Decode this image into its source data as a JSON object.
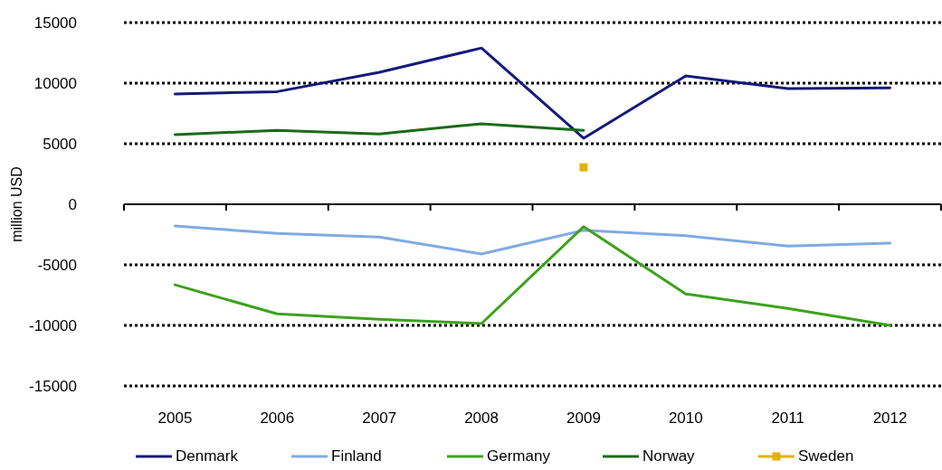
{
  "chart_data": {
    "type": "line",
    "ylabel": "million  USD",
    "categories": [
      "2005",
      "2006",
      "2007",
      "2008",
      "2009",
      "2010",
      "2011",
      "2012"
    ],
    "ylim": [
      -15000,
      15000
    ],
    "yticks": [
      -15000,
      -10000,
      -5000,
      0,
      5000,
      10000,
      15000
    ],
    "grid": "y",
    "legend": "bottom",
    "marker": "none",
    "line_style": "solid",
    "series": [
      {
        "name": "Denmark",
        "color": "#16197a",
        "values": [
          9100,
          9300,
          10900,
          12900,
          5450,
          10600,
          9550,
          9600
        ]
      },
      {
        "name": "Finland",
        "color": "#80aae2",
        "values": [
          -1800,
          -2400,
          -2700,
          -4100,
          -2150,
          -2600,
          -3450,
          -3200
        ]
      },
      {
        "name": "Germany",
        "color": "#3da21c",
        "values": [
          -6650,
          -9050,
          -9500,
          -9850,
          -1850,
          -7400,
          -8600,
          -10000
        ]
      },
      {
        "name": "Norway",
        "color": "#1a6a1a",
        "values": [
          5750,
          6100,
          5800,
          6650,
          6100,
          null,
          null,
          null
        ]
      },
      {
        "name": "Sweden",
        "color": "#e2b20a",
        "type": "scatter",
        "marker": "square",
        "values": [
          null,
          null,
          null,
          null,
          3050,
          null,
          null,
          null
        ]
      }
    ]
  }
}
